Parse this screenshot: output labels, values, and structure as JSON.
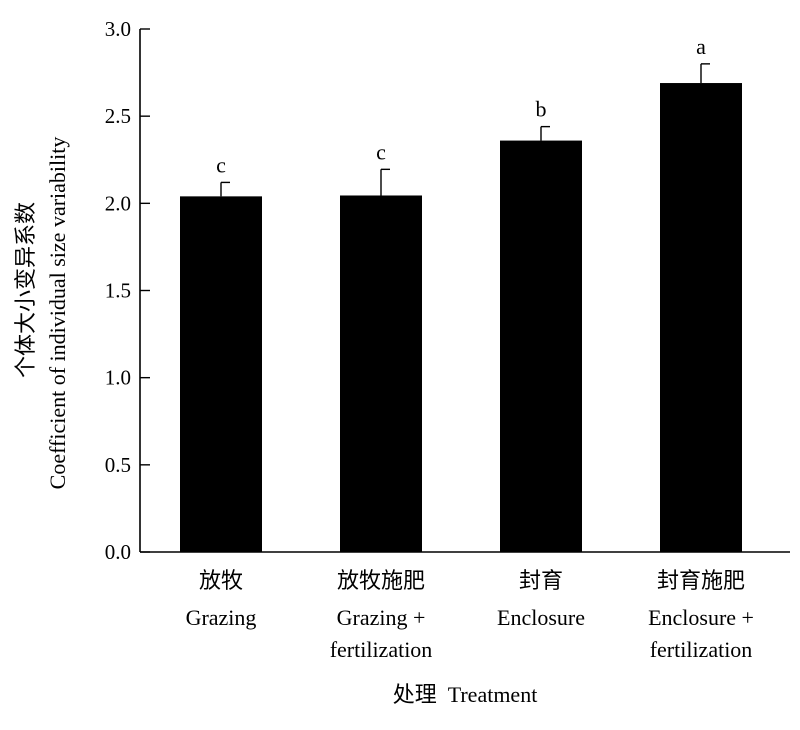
{
  "chart_data": {
    "type": "bar",
    "categories": [
      {
        "zh": "放牧",
        "en": [
          "Grazing"
        ]
      },
      {
        "zh": "放牧施肥",
        "en": [
          "Grazing +",
          "fertilization"
        ]
      },
      {
        "zh": "封育",
        "en": [
          "Enclosure"
        ]
      },
      {
        "zh": "封育施肥",
        "en": [
          "Enclosure +",
          "fertilization"
        ]
      }
    ],
    "values": [
      2.04,
      2.045,
      2.36,
      2.69
    ],
    "errors": [
      0.08,
      0.15,
      0.08,
      0.11
    ],
    "significance": [
      "c",
      "c",
      "b",
      "a"
    ],
    "ylim": [
      0,
      3.0
    ],
    "yticks": [
      "0.0",
      "0.5",
      "1.0",
      "1.5",
      "2.0",
      "2.5",
      "3.0"
    ],
    "ylabel_zh": "个体大小变异系数",
    "ylabel_en": "Coefficient of individual size variability",
    "xlabel": "处理  Treatment",
    "bar_color": "#000000"
  }
}
